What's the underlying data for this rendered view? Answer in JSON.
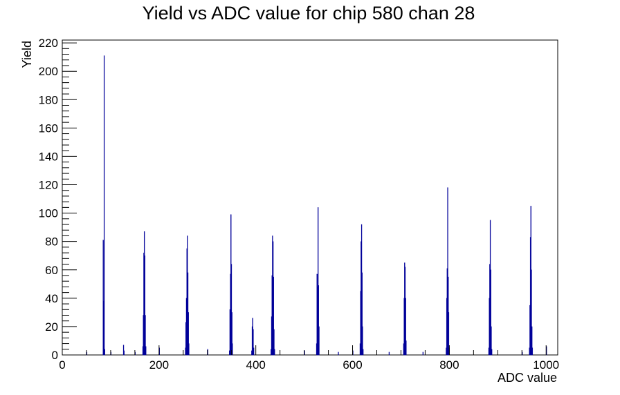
{
  "chart_data": {
    "type": "bar",
    "title": "Yield vs ADC value for chip 580 chan 28",
    "xlabel": "ADC value",
    "ylabel": "Yield",
    "xlim": [
      0,
      1024
    ],
    "ylim": [
      0,
      222
    ],
    "x_ticks": [
      0,
      200,
      400,
      600,
      800,
      1000
    ],
    "y_ticks": [
      0,
      20,
      40,
      60,
      80,
      100,
      120,
      140,
      160,
      180,
      200,
      220
    ],
    "grid": false,
    "legend": "none",
    "bin_width": 1,
    "series": [
      {
        "color": "#000099",
        "bins": [
          [
            50,
            2
          ],
          [
            84,
            81
          ],
          [
            85,
            38
          ],
          [
            86,
            211
          ],
          [
            87,
            4
          ],
          [
            100,
            2
          ],
          [
            126,
            7
          ],
          [
            127,
            3
          ],
          [
            150,
            2
          ],
          [
            166,
            6
          ],
          [
            167,
            28
          ],
          [
            168,
            72
          ],
          [
            169,
            87
          ],
          [
            170,
            70
          ],
          [
            171,
            28
          ],
          [
            172,
            6
          ],
          [
            200,
            5
          ],
          [
            254,
            5
          ],
          [
            255,
            23
          ],
          [
            256,
            40
          ],
          [
            257,
            75
          ],
          [
            258,
            84
          ],
          [
            259,
            58
          ],
          [
            260,
            30
          ],
          [
            261,
            8
          ],
          [
            300,
            4
          ],
          [
            345,
            3
          ],
          [
            346,
            32
          ],
          [
            347,
            57
          ],
          [
            348,
            99
          ],
          [
            349,
            64
          ],
          [
            350,
            30
          ],
          [
            351,
            8
          ],
          [
            391,
            3
          ],
          [
            392,
            20
          ],
          [
            393,
            26
          ],
          [
            394,
            18
          ],
          [
            395,
            5
          ],
          [
            431,
            4
          ],
          [
            432,
            27
          ],
          [
            433,
            56
          ],
          [
            434,
            84
          ],
          [
            435,
            80
          ],
          [
            436,
            55
          ],
          [
            437,
            18
          ],
          [
            438,
            4
          ],
          [
            500,
            3
          ],
          [
            525,
            8
          ],
          [
            526,
            57
          ],
          [
            527,
            48
          ],
          [
            528,
            104
          ],
          [
            529,
            49
          ],
          [
            530,
            20
          ],
          [
            570,
            2
          ],
          [
            600,
            3
          ],
          [
            615,
            8
          ],
          [
            616,
            45
          ],
          [
            617,
            80
          ],
          [
            618,
            92
          ],
          [
            619,
            58
          ],
          [
            620,
            20
          ],
          [
            621,
            4
          ],
          [
            675,
            2
          ],
          [
            705,
            8
          ],
          [
            706,
            40
          ],
          [
            707,
            65
          ],
          [
            708,
            62
          ],
          [
            709,
            40
          ],
          [
            710,
            10
          ],
          [
            745,
            2
          ],
          [
            793,
            5
          ],
          [
            794,
            40
          ],
          [
            795,
            61
          ],
          [
            796,
            118
          ],
          [
            797,
            55
          ],
          [
            798,
            30
          ],
          [
            799,
            5
          ],
          [
            881,
            5
          ],
          [
            882,
            40
          ],
          [
            883,
            64
          ],
          [
            884,
            95
          ],
          [
            885,
            60
          ],
          [
            886,
            20
          ],
          [
            887,
            4
          ],
          [
            950,
            2
          ],
          [
            965,
            5
          ],
          [
            966,
            35
          ],
          [
            967,
            83
          ],
          [
            968,
            105
          ],
          [
            969,
            60
          ],
          [
            970,
            20
          ],
          [
            971,
            5
          ],
          [
            1000,
            6
          ]
        ]
      }
    ]
  }
}
